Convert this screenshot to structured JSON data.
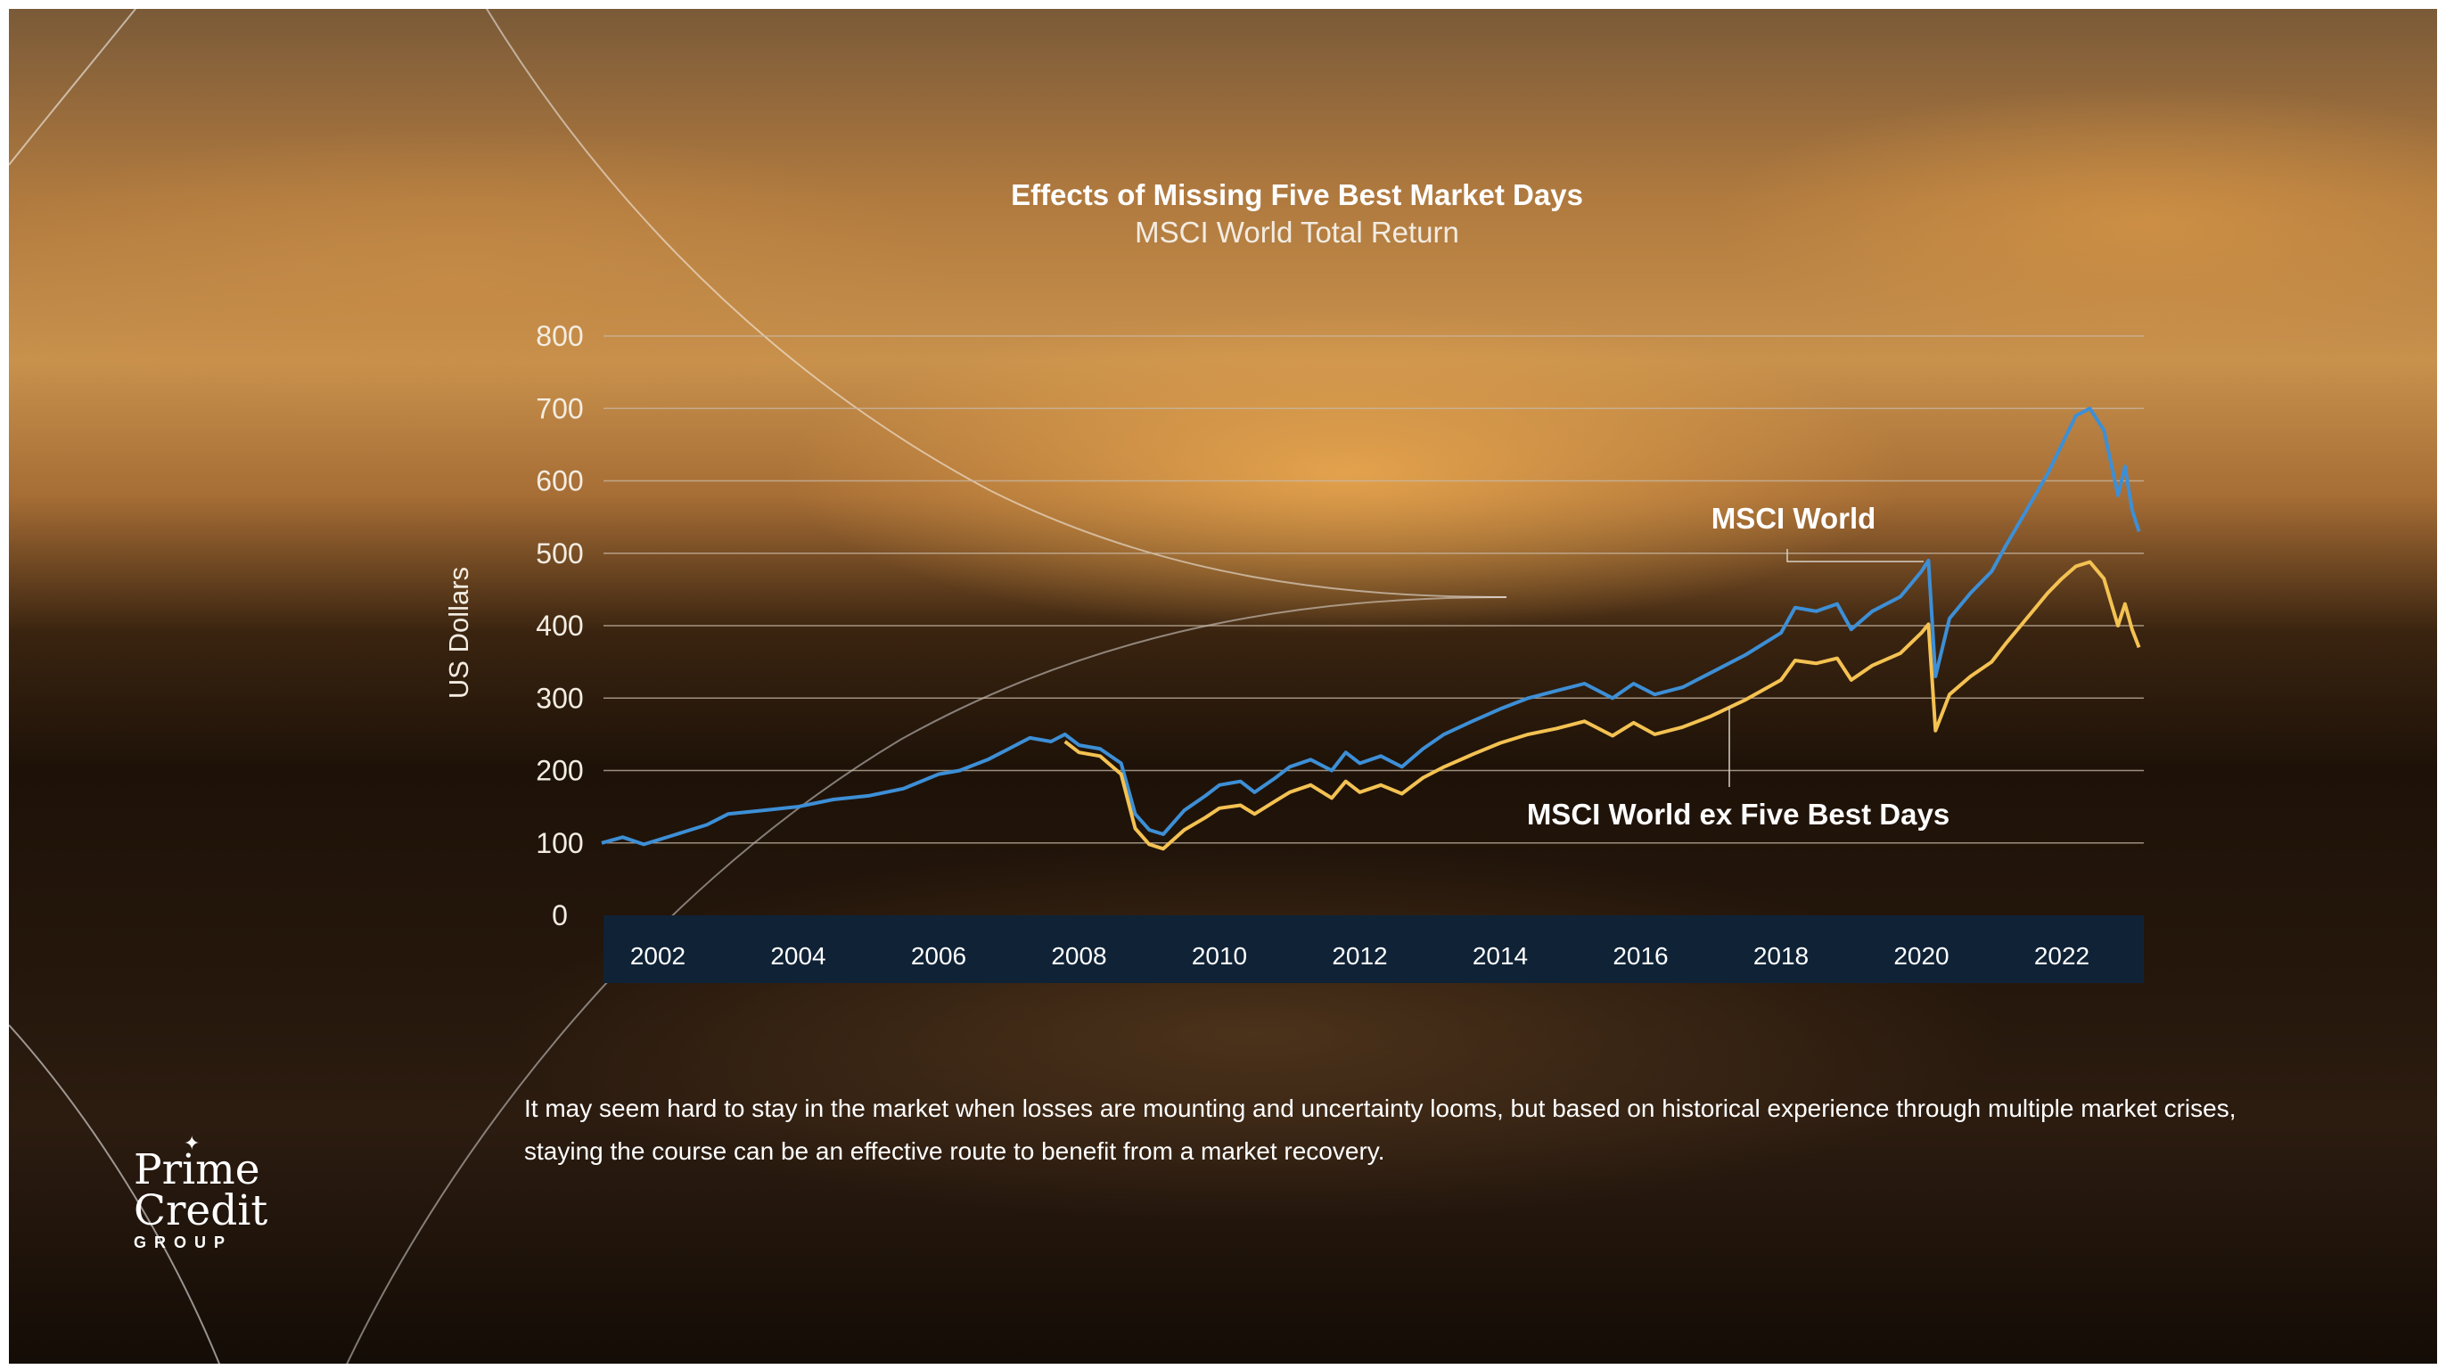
{
  "chart_data": {
    "type": "line",
    "title": "Effects of Missing Five Best Market Days",
    "subtitle": "MSCI World Total Return",
    "ylabel": "US Dollars",
    "ylim": [
      0,
      800
    ],
    "yticks": [
      "0",
      "100",
      "200",
      "300",
      "400",
      "500",
      "600",
      "700",
      "800"
    ],
    "xticks": [
      "2002",
      "2004",
      "2006",
      "2008",
      "2010",
      "2012",
      "2014",
      "2016",
      "2018",
      "2020",
      "2022"
    ],
    "grid": true,
    "series": [
      {
        "name": "MSCI World",
        "color": "#3d8fd6",
        "points": [
          [
            2001.2,
            100
          ],
          [
            2001.5,
            108
          ],
          [
            2001.8,
            98
          ],
          [
            2002.2,
            110
          ],
          [
            2002.7,
            125
          ],
          [
            2003.0,
            140
          ],
          [
            2003.5,
            145
          ],
          [
            2004.0,
            150
          ],
          [
            2004.5,
            160
          ],
          [
            2005.0,
            165
          ],
          [
            2005.5,
            175
          ],
          [
            2006.0,
            195
          ],
          [
            2006.3,
            200
          ],
          [
            2006.7,
            215
          ],
          [
            2007.0,
            230
          ],
          [
            2007.3,
            245
          ],
          [
            2007.6,
            240
          ],
          [
            2007.8,
            250
          ],
          [
            2008.0,
            235
          ],
          [
            2008.3,
            230
          ],
          [
            2008.6,
            210
          ],
          [
            2008.8,
            140
          ],
          [
            2009.0,
            118
          ],
          [
            2009.2,
            112
          ],
          [
            2009.5,
            145
          ],
          [
            2009.8,
            165
          ],
          [
            2010.0,
            180
          ],
          [
            2010.3,
            185
          ],
          [
            2010.5,
            170
          ],
          [
            2010.8,
            190
          ],
          [
            2011.0,
            205
          ],
          [
            2011.3,
            215
          ],
          [
            2011.6,
            200
          ],
          [
            2011.8,
            225
          ],
          [
            2012.0,
            210
          ],
          [
            2012.3,
            220
          ],
          [
            2012.6,
            205
          ],
          [
            2012.9,
            230
          ],
          [
            2013.2,
            250
          ],
          [
            2013.6,
            268
          ],
          [
            2014.0,
            285
          ],
          [
            2014.4,
            300
          ],
          [
            2014.8,
            310
          ],
          [
            2015.2,
            320
          ],
          [
            2015.6,
            300
          ],
          [
            2015.9,
            320
          ],
          [
            2016.2,
            305
          ],
          [
            2016.6,
            315
          ],
          [
            2017.0,
            335
          ],
          [
            2017.5,
            360
          ],
          [
            2018.0,
            390
          ],
          [
            2018.2,
            425
          ],
          [
            2018.5,
            420
          ],
          [
            2018.8,
            430
          ],
          [
            2019.0,
            395
          ],
          [
            2019.3,
            420
          ],
          [
            2019.7,
            440
          ],
          [
            2020.0,
            475
          ],
          [
            2020.1,
            490
          ],
          [
            2020.2,
            330
          ],
          [
            2020.4,
            410
          ],
          [
            2020.7,
            445
          ],
          [
            2021.0,
            475
          ],
          [
            2021.2,
            510
          ],
          [
            2021.5,
            560
          ],
          [
            2021.8,
            610
          ],
          [
            2022.0,
            650
          ],
          [
            2022.2,
            690
          ],
          [
            2022.4,
            700
          ],
          [
            2022.6,
            670
          ],
          [
            2022.8,
            580
          ],
          [
            2022.9,
            620
          ],
          [
            2023.0,
            560
          ],
          [
            2023.1,
            530
          ]
        ]
      },
      {
        "name": "MSCI World ex Five Best Days",
        "color": "#f4c252",
        "points": [
          [
            2007.8,
            240
          ],
          [
            2008.0,
            225
          ],
          [
            2008.3,
            220
          ],
          [
            2008.6,
            195
          ],
          [
            2008.8,
            120
          ],
          [
            2009.0,
            98
          ],
          [
            2009.2,
            92
          ],
          [
            2009.5,
            118
          ],
          [
            2009.8,
            135
          ],
          [
            2010.0,
            148
          ],
          [
            2010.3,
            152
          ],
          [
            2010.5,
            140
          ],
          [
            2010.8,
            158
          ],
          [
            2011.0,
            170
          ],
          [
            2011.3,
            180
          ],
          [
            2011.6,
            162
          ],
          [
            2011.8,
            185
          ],
          [
            2012.0,
            170
          ],
          [
            2012.3,
            180
          ],
          [
            2012.6,
            168
          ],
          [
            2012.9,
            190
          ],
          [
            2013.2,
            205
          ],
          [
            2013.6,
            222
          ],
          [
            2014.0,
            238
          ],
          [
            2014.4,
            250
          ],
          [
            2014.8,
            258
          ],
          [
            2015.2,
            268
          ],
          [
            2015.6,
            248
          ],
          [
            2015.9,
            266
          ],
          [
            2016.2,
            250
          ],
          [
            2016.6,
            260
          ],
          [
            2017.0,
            275
          ],
          [
            2017.5,
            298
          ],
          [
            2018.0,
            325
          ],
          [
            2018.2,
            352
          ],
          [
            2018.5,
            348
          ],
          [
            2018.8,
            355
          ],
          [
            2019.0,
            325
          ],
          [
            2019.3,
            345
          ],
          [
            2019.7,
            362
          ],
          [
            2020.0,
            390
          ],
          [
            2020.1,
            402
          ],
          [
            2020.2,
            255
          ],
          [
            2020.4,
            305
          ],
          [
            2020.7,
            330
          ],
          [
            2021.0,
            350
          ],
          [
            2021.2,
            375
          ],
          [
            2021.5,
            410
          ],
          [
            2021.8,
            445
          ],
          [
            2022.0,
            465
          ],
          [
            2022.2,
            482
          ],
          [
            2022.4,
            488
          ],
          [
            2022.6,
            465
          ],
          [
            2022.8,
            400
          ],
          [
            2022.9,
            430
          ],
          [
            2023.0,
            395
          ],
          [
            2023.1,
            370
          ]
        ]
      }
    ]
  },
  "body_text": "It may seem hard to stay in the market when losses are mounting and uncertainty looms, but based on historical experience through multiple market crises, staying the course can be an effective route to benefit from a market recovery.",
  "logo": {
    "line1": "Prime",
    "line2": "Credit",
    "line3": "GROUP"
  },
  "colors": {
    "axis_band": "#0f2236",
    "grid": "#c9b9a6"
  }
}
